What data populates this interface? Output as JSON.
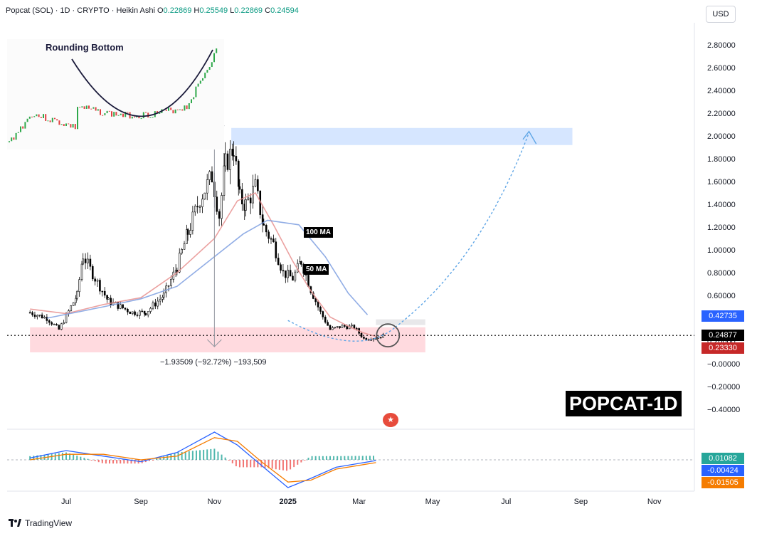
{
  "header": {
    "symbol": "Popcat (SOL)",
    "interval": "1D",
    "exchange": "CRYPTO",
    "chart_style": "Heikin Ashi",
    "open_label": "O",
    "open": "0.22869",
    "high_label": "H",
    "high": "0.25549",
    "low_label": "L",
    "low": "0.22869",
    "close_label": "C",
    "close": "0.24594"
  },
  "currency": "USD",
  "price_badges": {
    "ma100": "0.42735",
    "last": "0.24877",
    "ma50": "0.23330"
  },
  "indicator_badges": [
    "0.01082",
    "-0.00424",
    "-0.01505"
  ],
  "colors": {
    "ma50": "#e8908f",
    "ma100": "#7e9fe0",
    "target_zone": "#cfe2ff",
    "support_zone": "#ffd4d9",
    "projection": "#5ea5e6",
    "badge_blue": "#2962ff",
    "badge_red": "#c62828",
    "badge_teal": "#26a69a",
    "badge_orange": "#f57c00"
  },
  "labels": {
    "ma100": "100 MA",
    "ma50": "50 MA",
    "inset_title": "Rounding Bottom",
    "watermark": "POPCAT-1D",
    "measure": "−1.93509 (−92.72%) −193,509",
    "tradingview": "TradingView"
  },
  "chart_data": {
    "type": "line",
    "title": "",
    "xlabel": "",
    "ylabel": "",
    "y_ticks": [
      "2.80000",
      "2.60000",
      "2.40000",
      "2.20000",
      "2.00000",
      "1.80000",
      "1.60000",
      "1.40000",
      "1.20000",
      "1.00000",
      "0.80000",
      "0.60000",
      "0.40000",
      "0.20000",
      "−0.00000",
      "−0.20000",
      "−0.40000"
    ],
    "ylim": [
      -0.5,
      3.0
    ],
    "x_ticks": [
      "Jul",
      "Sep",
      "Nov",
      "2025",
      "Mar",
      "May",
      "Jul",
      "Sep",
      "Nov"
    ],
    "xlim": [
      "2024-06-01",
      "2025-11-30"
    ],
    "grid": false,
    "series": [
      {
        "name": "",
        "kind": "close-approx",
        "x": [
          "2024-06-01",
          "2024-06-15",
          "2024-06-25",
          "2024-07-10",
          "2024-07-15",
          "2024-07-25",
          "2024-08-05",
          "2024-08-15",
          "2024-08-25",
          "2024-09-05",
          "2024-09-20",
          "2024-10-01",
          "2024-10-10",
          "2024-10-20",
          "2024-10-30",
          "2024-11-05",
          "2024-11-10",
          "2024-11-17",
          "2024-11-22",
          "2024-11-27",
          "2024-12-05",
          "2024-12-12",
          "2024-12-20",
          "2024-12-28",
          "2025-01-05",
          "2025-01-12",
          "2025-01-20",
          "2025-01-28",
          "2025-02-05",
          "2025-02-15",
          "2025-02-25",
          "2025-03-05",
          "2025-03-15",
          "2025-03-22"
        ],
        "y": [
          0.45,
          0.4,
          0.3,
          0.6,
          0.95,
          0.75,
          0.55,
          0.5,
          0.45,
          0.45,
          0.6,
          0.85,
          1.15,
          1.45,
          1.65,
          1.3,
          1.75,
          1.9,
          1.45,
          1.4,
          1.55,
          1.2,
          1.05,
          0.8,
          0.75,
          0.9,
          0.65,
          0.45,
          0.3,
          0.33,
          0.32,
          0.22,
          0.23,
          0.25
        ]
      },
      {
        "name": "50 MA",
        "x": [
          "2024-06-01",
          "2024-07-01",
          "2024-08-01",
          "2024-09-01",
          "2024-10-01",
          "2024-11-01",
          "2024-11-20",
          "2024-12-05",
          "2024-12-20",
          "2025-01-05",
          "2025-01-20",
          "2025-02-05",
          "2025-02-20",
          "2025-03-05",
          "2025-03-15"
        ],
        "y": [
          0.48,
          0.44,
          0.52,
          0.58,
          0.8,
          1.1,
          1.43,
          1.5,
          1.22,
          0.9,
          0.64,
          0.41,
          0.33,
          0.27,
          0.24
        ]
      },
      {
        "name": "100 MA",
        "x": [
          "2024-06-15",
          "2024-08-01",
          "2024-09-01",
          "2024-10-01",
          "2024-11-01",
          "2024-11-25",
          "2024-12-15",
          "2025-01-10",
          "2025-02-01",
          "2025-02-20",
          "2025-03-08"
        ],
        "y": [
          0.4,
          0.5,
          0.57,
          0.68,
          0.94,
          1.14,
          1.26,
          1.22,
          0.94,
          0.62,
          0.43
        ]
      }
    ],
    "annotations": [
      {
        "type": "target_zone",
        "y0": 1.92,
        "y1": 2.07,
        "x0": "2024-11-15",
        "x1": "2025-08-25"
      },
      {
        "type": "support_zone",
        "y0": 0.1,
        "y1": 0.32,
        "x0": "2024-06-01",
        "x1": "2025-04-25"
      },
      {
        "type": "gray_zone",
        "y0": 0.34,
        "y1": 0.39,
        "x0": "2025-03-15",
        "x1": "2025-04-25"
      },
      {
        "type": "measure",
        "from": 2.09,
        "to": 0.15,
        "x": "2024-11-01"
      }
    ],
    "indicator": {
      "type": "macd",
      "series": [
        {
          "name": "",
          "x": [
            "2024-06-01",
            "2024-07-01",
            "2024-08-01",
            "2024-09-01",
            "2024-10-01",
            "2024-11-01",
            "2024-11-20",
            "2024-12-10",
            "2025-01-01",
            "2025-01-20",
            "2025-02-10",
            "2025-03-15"
          ],
          "y": [
            0.01,
            0.05,
            0.02,
            -0.01,
            0.04,
            0.15,
            0.08,
            -0.03,
            -0.15,
            -0.1,
            -0.04,
            -0.004
          ]
        },
        {
          "name": "",
          "x": [
            "2024-06-01",
            "2024-07-01",
            "2024-08-01",
            "2024-09-01",
            "2024-10-01",
            "2024-11-01",
            "2024-11-20",
            "2024-12-10",
            "2025-01-01",
            "2025-01-20",
            "2025-02-10",
            "2025-03-15"
          ],
          "y": [
            0.0,
            0.03,
            0.03,
            0.0,
            0.02,
            0.12,
            0.1,
            -0.01,
            -0.12,
            -0.11,
            -0.05,
            -0.015
          ]
        }
      ]
    }
  }
}
